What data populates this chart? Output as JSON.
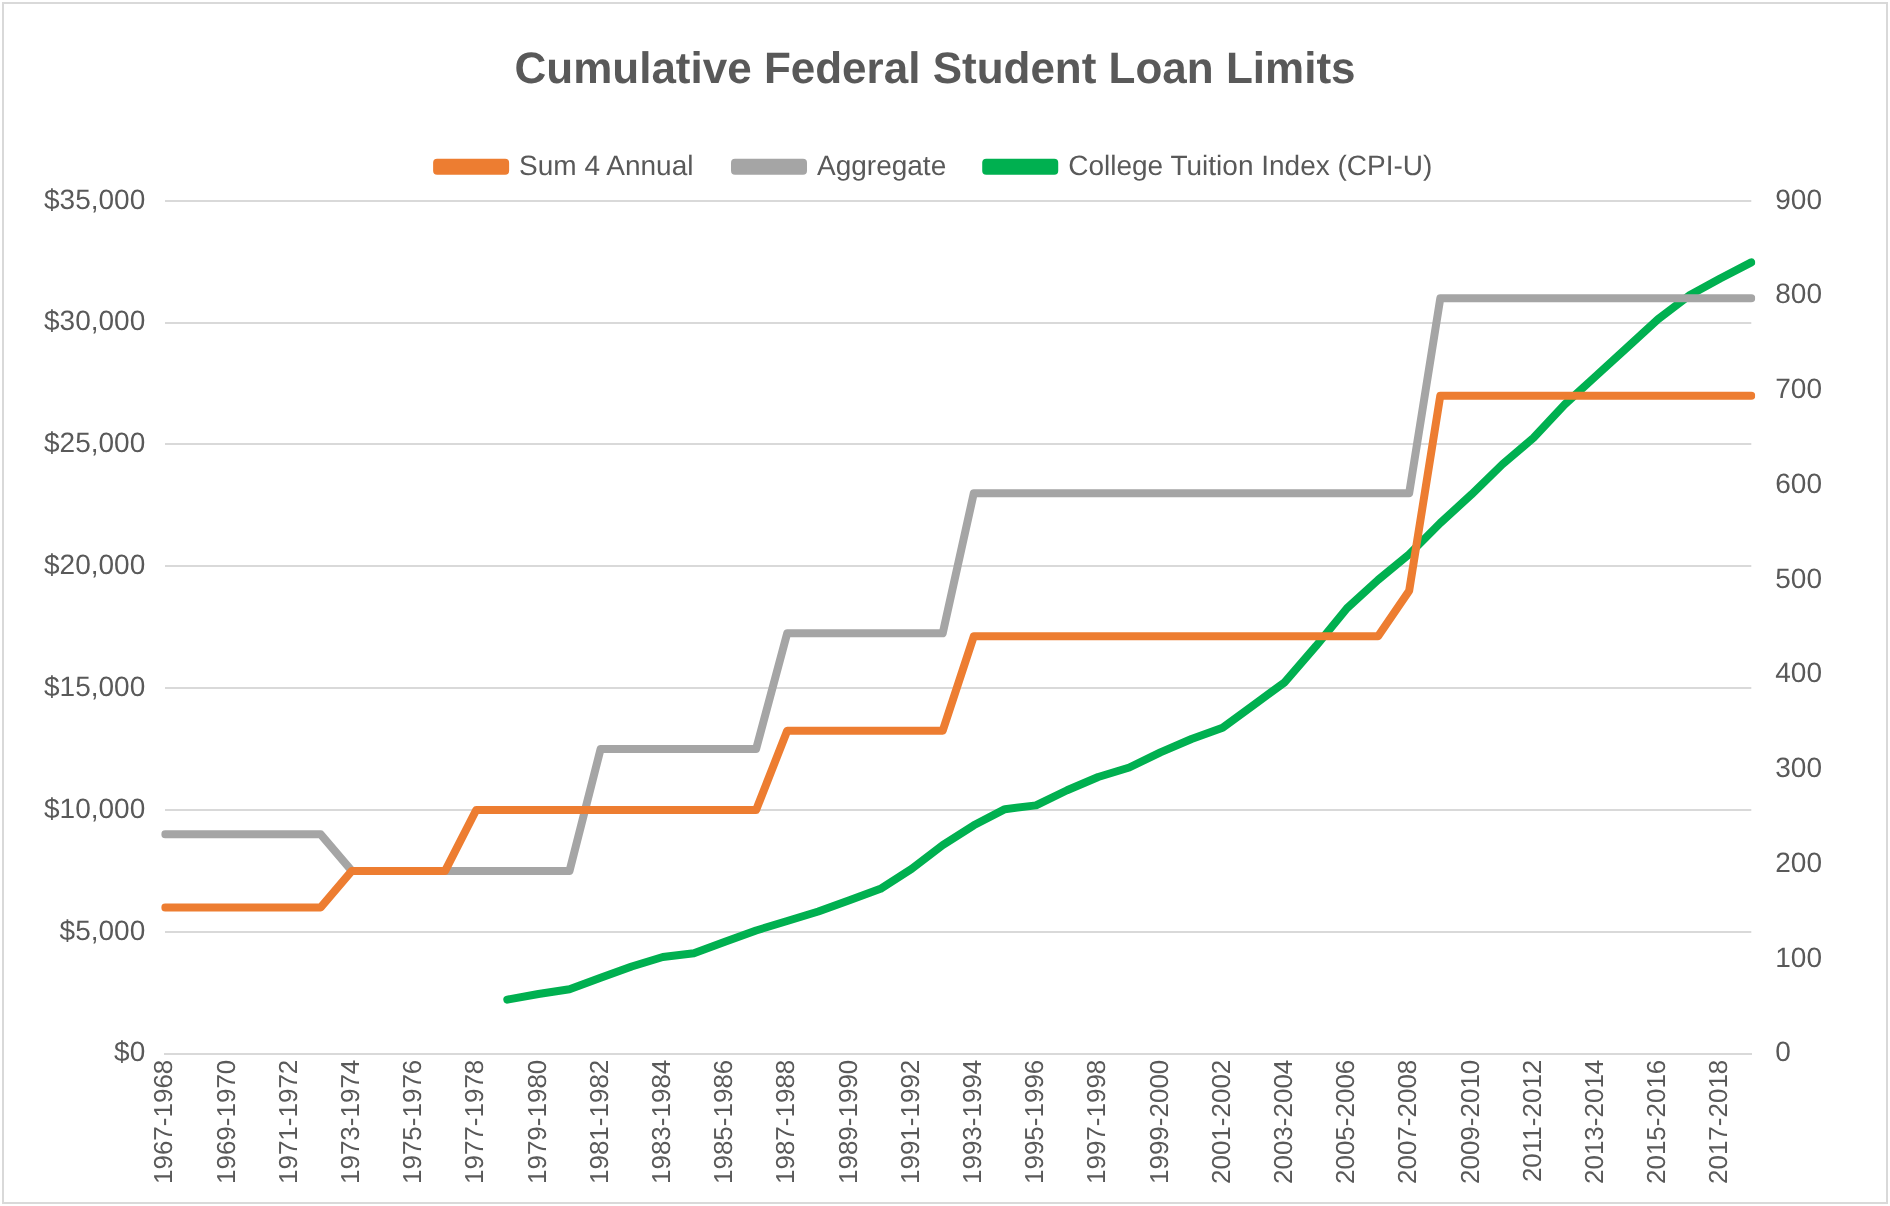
{
  "chart_data": {
    "type": "line",
    "title": "Cumulative Federal Student Loan Limits",
    "categories": [
      "1967-1968",
      null,
      "1969-1970",
      null,
      "1971-1972",
      null,
      "1973-1974",
      null,
      "1975-1976",
      null,
      "1977-1978",
      null,
      "1979-1980",
      null,
      "1981-1982",
      null,
      "1983-1984",
      null,
      "1985-1986",
      null,
      "1987-1988",
      null,
      "1989-1990",
      null,
      "1991-1992",
      null,
      "1993-1994",
      null,
      "1995-1996",
      null,
      "1997-1998",
      null,
      "1999-2000",
      null,
      "2001-2002",
      null,
      "2003-2004",
      null,
      "2005-2006",
      null,
      "2007-2008",
      null,
      "2009-2010",
      null,
      "2011-2012",
      null,
      "2013-2014",
      null,
      "2015-2016",
      null,
      "2017-2018",
      null
    ],
    "series": [
      {
        "name": "Sum 4 Annual",
        "color": "#ed7d31",
        "values": [
          6000,
          6000,
          6000,
          6000,
          6000,
          6000,
          7500,
          7500,
          7500,
          7500,
          10000,
          10000,
          10000,
          10000,
          10000,
          10000,
          10000,
          10000,
          10000,
          10000,
          13250,
          13250,
          13250,
          13250,
          13250,
          13250,
          17125,
          17125,
          17125,
          17125,
          17125,
          17125,
          17125,
          17125,
          17125,
          17125,
          17125,
          17125,
          17125,
          17125,
          19000,
          27000,
          27000,
          27000,
          27000,
          27000,
          27000,
          27000,
          27000,
          27000,
          27000,
          27000
        ]
      },
      {
        "name": "Aggregate",
        "color": "#a5a5a5",
        "values": [
          9000,
          9000,
          9000,
          9000,
          9000,
          9000,
          7500,
          7500,
          7500,
          7500,
          7500,
          7500,
          7500,
          7500,
          12500,
          12500,
          12500,
          12500,
          12500,
          12500,
          17250,
          17250,
          17250,
          17250,
          17250,
          17250,
          23000,
          23000,
          23000,
          23000,
          23000,
          23000,
          23000,
          23000,
          23000,
          23000,
          23000,
          23000,
          23000,
          23000,
          23000,
          31000,
          31000,
          31000,
          31000,
          31000,
          31000,
          31000,
          31000,
          31000,
          31000,
          31000
        ]
      },
      {
        "name": "College Tuition Index (CPI-U)",
        "color": "#00b050",
        "axis": "y2",
        "values": [
          null,
          null,
          null,
          null,
          null,
          null,
          null,
          null,
          null,
          null,
          null,
          57,
          63,
          68,
          80,
          92,
          102,
          106,
          118,
          130,
          140,
          150,
          162,
          174,
          195,
          220,
          241,
          258,
          262,
          278,
          292,
          302,
          318,
          332,
          344,
          368,
          392,
          430,
          470,
          500,
          527,
          560,
          590,
          622,
          650,
          685,
          715,
          745,
          775,
          800,
          818,
          835
        ]
      }
    ],
    "ylim": [
      0,
      35000
    ],
    "yticks": [
      {
        "value": 0,
        "label": "$0"
      },
      {
        "value": 5000,
        "label": "$5,000"
      },
      {
        "value": 10000,
        "label": "$10,000"
      },
      {
        "value": 15000,
        "label": "$15,000"
      },
      {
        "value": 20000,
        "label": "$20,000"
      },
      {
        "value": 25000,
        "label": "$25,000"
      },
      {
        "value": 30000,
        "label": "$30,000"
      },
      {
        "value": 35000,
        "label": "$35,000"
      }
    ],
    "y2lim": [
      0,
      900
    ],
    "y2ticks": [
      0,
      100,
      200,
      300,
      400,
      500,
      600,
      700,
      800,
      900
    ],
    "grid": "y",
    "legend": "top",
    "marker": "none",
    "line_style": "solid"
  }
}
